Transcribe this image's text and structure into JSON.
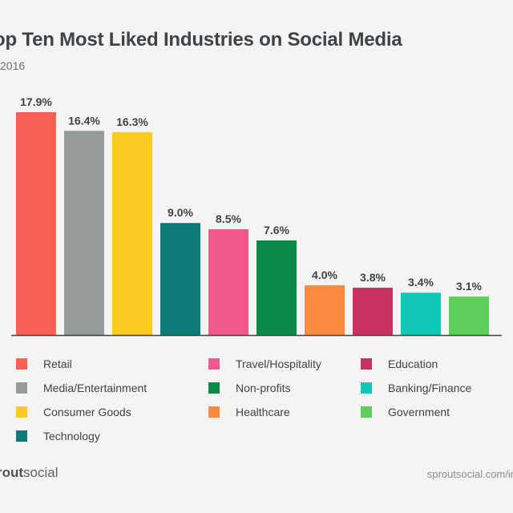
{
  "header": {
    "title": "op Ten Most Liked Industries on Social Media",
    "subtitle": "2016"
  },
  "footer": {
    "brand_bold": "rout",
    "brand_rest": "social",
    "source": "sproutsocial.com/in"
  },
  "chart_data": {
    "type": "bar",
    "categories": [
      "Retail",
      "Media/Entertainment",
      "Consumer Goods",
      "Technology",
      "Travel/Hospitality",
      "Non-profits",
      "Healthcare",
      "Education",
      "Banking/Finance",
      "Government"
    ],
    "values": [
      17.9,
      16.4,
      16.3,
      9.0,
      8.5,
      7.6,
      4.0,
      3.8,
      3.4,
      3.1
    ],
    "value_labels": [
      "17.9%",
      "16.4%",
      "16.3%",
      "9.0%",
      "8.5%",
      "7.6%",
      "4.0%",
      "3.8%",
      "3.4%",
      "3.1%"
    ],
    "colors": [
      "#f96157",
      "#959a9b",
      "#fdcb21",
      "#0f7a7a",
      "#f0598c",
      "#0a8a46",
      "#fc8a40",
      "#c9325e",
      "#10c7b8",
      "#5cce5a"
    ],
    "title": "op Ten Most Liked Industries on Social Media",
    "ylim": [
      0,
      17.9
    ],
    "grid": false,
    "legend_position": "bottom",
    "axis_color": "#3e4347"
  }
}
